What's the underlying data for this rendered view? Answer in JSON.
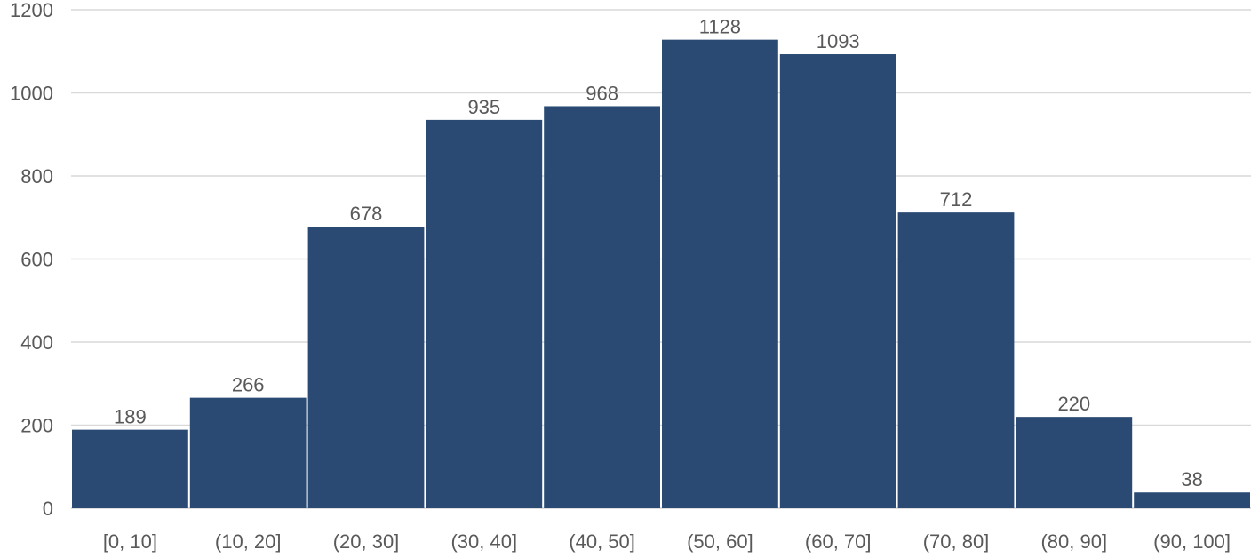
{
  "chart_data": {
    "type": "bar",
    "title": "",
    "xlabel": "",
    "ylabel": "",
    "categories": [
      "[0, 10]",
      "(10, 20]",
      "(20, 30]",
      "(30, 40]",
      "(40, 50]",
      "(50, 60]",
      "(60, 70]",
      "(70, 80]",
      "(80, 90]",
      "(90, 100]"
    ],
    "values": [
      189,
      266,
      678,
      935,
      968,
      1128,
      1093,
      712,
      220,
      38
    ],
    "ylim": [
      0,
      1200
    ],
    "yticks": [
      0,
      200,
      400,
      600,
      800,
      1000,
      1200
    ],
    "grid": true,
    "legend": "none",
    "colors": {
      "bar": "#2a4a74",
      "grid": "#d9d9d9",
      "text": "#595959"
    }
  }
}
